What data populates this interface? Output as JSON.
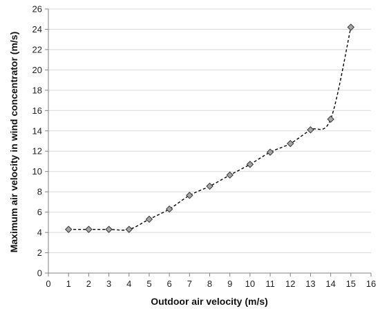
{
  "chart_data": {
    "type": "line",
    "xlabel": "Outdoor air velocity (m/s)",
    "ylabel": "Maximum air velocity in wind concentrator (m/s)",
    "xlim": [
      0,
      16
    ],
    "ylim": [
      0,
      26
    ],
    "x_ticks": [
      0,
      1,
      2,
      3,
      4,
      5,
      6,
      7,
      8,
      9,
      10,
      11,
      12,
      13,
      14,
      15,
      16
    ],
    "y_ticks": [
      0,
      2,
      4,
      6,
      8,
      10,
      12,
      14,
      16,
      18,
      20,
      22,
      24,
      26
    ],
    "grid": "horizontal",
    "legend": "none",
    "series": [
      {
        "x": [
          1,
          2,
          3,
          4,
          5,
          6,
          7,
          8,
          9,
          10,
          11,
          12,
          13,
          14,
          15
        ],
        "y": [
          4.3,
          4.3,
          4.3,
          4.3,
          5.3,
          6.3,
          7.65,
          8.55,
          9.65,
          10.7,
          11.9,
          12.75,
          14.1,
          15.15,
          24.2
        ],
        "line_color": "#000000",
        "line_style": "dashed",
        "marker": "diamond",
        "marker_color": "#a6a6a6"
      }
    ]
  }
}
